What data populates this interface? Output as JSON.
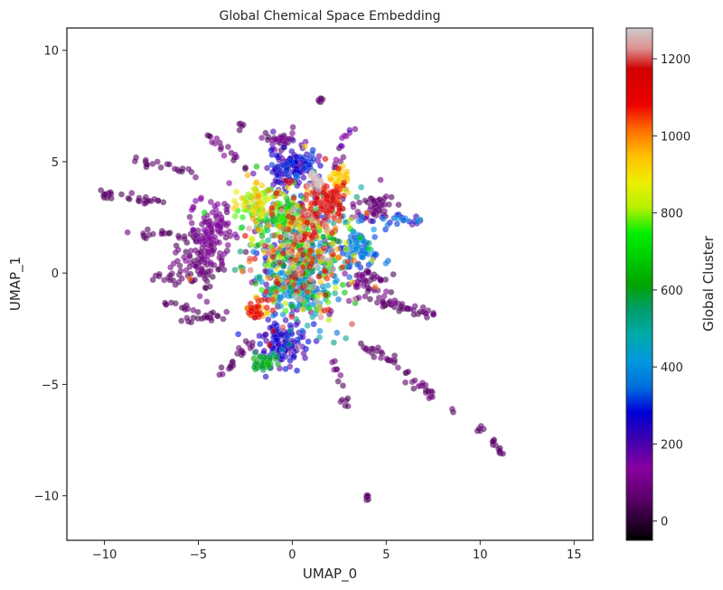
{
  "chart_data": {
    "type": "scatter",
    "title": "Global Chemical Space Embedding",
    "xlabel": "UMAP_0",
    "ylabel": "UMAP_1",
    "xlim": [
      -12,
      16
    ],
    "ylim": [
      -12,
      11
    ],
    "xticks": [
      -10,
      -5,
      0,
      5,
      10,
      15
    ],
    "xtick_labels": [
      "−10",
      "−5",
      "0",
      "5",
      "10",
      "15"
    ],
    "yticks": [
      -10,
      -5,
      0,
      5,
      10
    ],
    "ytick_labels": [
      "−10",
      "−5",
      "0",
      "5",
      "10"
    ],
    "grid": false,
    "colorbar": {
      "label": "Global Cluster",
      "range": [
        -50,
        1280
      ],
      "ticks": [
        0,
        200,
        400,
        600,
        800,
        1000,
        1200
      ],
      "tick_labels": [
        "0",
        "200",
        "400",
        "600",
        "800",
        "1000",
        "1200"
      ],
      "colormap": "nipy_spectral"
    },
    "clusters": [
      {
        "cx": 0.3,
        "cy": 1.0,
        "sx": 2.6,
        "sy": 2.7,
        "n": 700,
        "v": [
          0,
          1280
        ]
      },
      {
        "cx": 0.0,
        "cy": 4.8,
        "sx": 1.2,
        "sy": 0.8,
        "n": 140,
        "v": [
          150,
          320
        ]
      },
      {
        "cx": -0.5,
        "cy": -3.2,
        "sx": 1.3,
        "sy": 0.9,
        "n": 120,
        "v": [
          170,
          300
        ]
      },
      {
        "cx": -1.8,
        "cy": 3.2,
        "sx": 0.9,
        "sy": 0.9,
        "n": 80,
        "v": [
          700,
          1000
        ]
      },
      {
        "cx": 1.8,
        "cy": 3.2,
        "sx": 0.9,
        "sy": 0.8,
        "n": 90,
        "v": [
          1050,
          1200
        ]
      },
      {
        "cx": 1.3,
        "cy": 4.2,
        "sx": 0.3,
        "sy": 0.3,
        "n": 20,
        "v": [
          1240,
          1275
        ]
      },
      {
        "cx": 2.5,
        "cy": 4.2,
        "sx": 0.5,
        "sy": 0.5,
        "n": 35,
        "v": [
          880,
          960
        ]
      },
      {
        "cx": -0.5,
        "cy": 2.5,
        "sx": 0.8,
        "sy": 0.8,
        "n": 60,
        "v": [
          620,
          780
        ]
      },
      {
        "cx": -1.9,
        "cy": -1.7,
        "sx": 0.5,
        "sy": 0.5,
        "n": 40,
        "v": [
          900,
          1150
        ]
      },
      {
        "cx": -1.5,
        "cy": -4.0,
        "sx": 0.6,
        "sy": 0.4,
        "n": 40,
        "v": [
          540,
          620
        ]
      },
      {
        "cx": 0.3,
        "cy": -0.8,
        "sx": 1.5,
        "sy": 1.0,
        "n": 120,
        "v": [
          320,
          520
        ]
      },
      {
        "cx": 3.6,
        "cy": 1.0,
        "sx": 1.0,
        "sy": 1.0,
        "n": 70,
        "v": [
          280,
          420
        ]
      },
      {
        "cx": -4.3,
        "cy": 2.0,
        "sx": 1.0,
        "sy": 1.3,
        "n": 100,
        "v": [
          40,
          160
        ]
      },
      {
        "cx": -5.0,
        "cy": 0.5,
        "sx": 1.2,
        "sy": 1.0,
        "n": 80,
        "v": [
          20,
          120
        ]
      },
      {
        "cx": 4.0,
        "cy": -0.5,
        "sx": 1.0,
        "sy": 0.8,
        "n": 50,
        "v": [
          20,
          120
        ]
      },
      {
        "cx": -0.5,
        "cy": 6.0,
        "sx": 0.8,
        "sy": 0.3,
        "n": 30,
        "v": [
          20,
          120
        ]
      },
      {
        "cx": 4.5,
        "cy": 3.0,
        "sx": 1.0,
        "sy": 0.6,
        "n": 50,
        "v": [
          20,
          110
        ]
      }
    ],
    "strands": [
      {
        "from": [
          -10.2,
          3.6
        ],
        "to": [
          -7.0,
          3.2
        ],
        "n": 25,
        "v": [
          20,
          80
        ]
      },
      {
        "from": [
          -8.6,
          5.1
        ],
        "to": [
          -5.0,
          4.5
        ],
        "n": 20,
        "v": [
          20,
          80
        ]
      },
      {
        "from": [
          -8.8,
          1.8
        ],
        "to": [
          -5.0,
          1.6
        ],
        "n": 20,
        "v": [
          20,
          80
        ]
      },
      {
        "from": [
          -7.5,
          -0.3
        ],
        "to": [
          -4.0,
          -0.2
        ],
        "n": 20,
        "v": [
          20,
          80
        ]
      },
      {
        "from": [
          -6.2,
          -2.2
        ],
        "to": [
          -3.5,
          -1.8
        ],
        "n": 20,
        "v": [
          20,
          80
        ]
      },
      {
        "from": [
          -4.0,
          -4.7
        ],
        "to": [
          -2.0,
          -3.0
        ],
        "n": 22,
        "v": [
          20,
          80
        ]
      },
      {
        "from": [
          4.5,
          -1.3
        ],
        "to": [
          8.0,
          -1.9
        ],
        "n": 40,
        "v": [
          20,
          100
        ]
      },
      {
        "from": [
          3.5,
          -3.2
        ],
        "to": [
          5.5,
          -4.0
        ],
        "n": 22,
        "v": [
          20,
          100
        ]
      },
      {
        "from": [
          5.5,
          -4.2
        ],
        "to": [
          7.5,
          -5.5
        ],
        "n": 22,
        "v": [
          20,
          100
        ]
      },
      {
        "from": [
          2.5,
          2.5
        ],
        "to": [
          7.0,
          2.4
        ],
        "n": 30,
        "v": [
          150,
          420
        ]
      },
      {
        "from": [
          2.3,
          4.7
        ],
        "to": [
          3.2,
          6.8
        ],
        "n": 15,
        "v": [
          20,
          200
        ]
      },
      {
        "from": [
          -2.5,
          4.8
        ],
        "to": [
          -4.5,
          6.2
        ],
        "n": 18,
        "v": [
          20,
          120
        ]
      },
      {
        "from": [
          2.2,
          -3.8
        ],
        "to": [
          3.0,
          -6.2
        ],
        "n": 14,
        "v": [
          20,
          100
        ]
      },
      {
        "from": [
          -7.0,
          -1.4
        ],
        "to": [
          -5.2,
          -1.6
        ],
        "n": 12,
        "v": [
          20,
          80
        ]
      }
    ],
    "islands": [
      {
        "cx": 1.5,
        "cy": 7.8,
        "n": 7,
        "v": [
          20,
          80
        ]
      },
      {
        "cx": 4.0,
        "cy": -10.1,
        "n": 7,
        "v": [
          20,
          80
        ]
      },
      {
        "cx": 10.0,
        "cy": -7.0,
        "n": 5,
        "v": [
          20,
          80
        ]
      },
      {
        "cx": 10.7,
        "cy": -7.6,
        "n": 6,
        "v": [
          20,
          80
        ]
      },
      {
        "cx": 11.1,
        "cy": -8.0,
        "n": 6,
        "v": [
          20,
          80
        ]
      },
      {
        "cx": 8.5,
        "cy": -6.1,
        "n": 2,
        "v": [
          20,
          80
        ]
      },
      {
        "cx": -10.0,
        "cy": 3.5,
        "n": 5,
        "v": [
          20,
          80
        ]
      },
      {
        "cx": -2.7,
        "cy": 6.6,
        "n": 5,
        "v": [
          20,
          80
        ]
      }
    ]
  }
}
